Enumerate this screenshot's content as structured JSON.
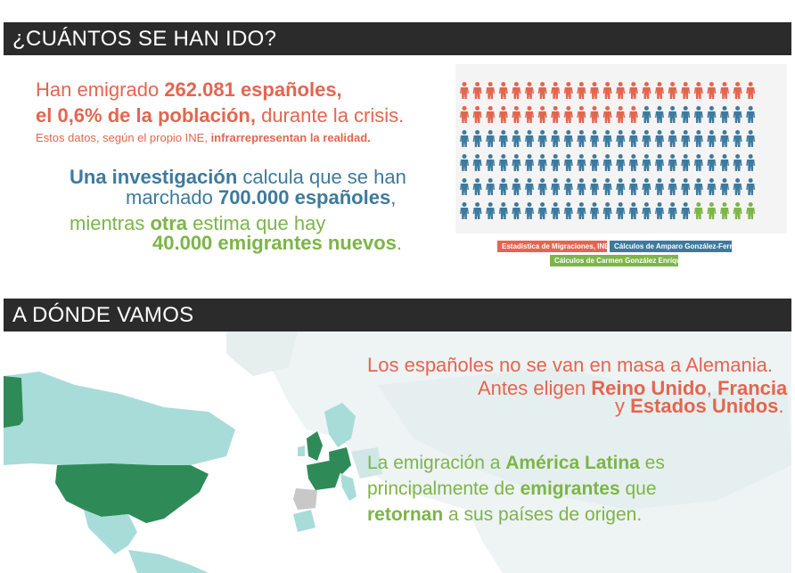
{
  "section1": {
    "header": "¿CUÁNTOS SE HAN IDO?",
    "p1_line1_a": "Han emigrado ",
    "p1_line1_b": "262.081 españoles,",
    "p1_line2_a": "el 0,6% de la población,",
    "p1_line2_b": " durante la crisis.",
    "p1_line3_a": "Estos datos, según el propio INE, ",
    "p1_line3_b": "infrarrepresentan la realidad.",
    "p2_line1_a": "Una investigación",
    "p2_line1_b": " calcula que se han",
    "p2_line2_a": "marchado ",
    "p2_line2_b": "700.000 españoles",
    "p2_line2_c": ",",
    "p3_line1_a": "mientras ",
    "p3_line1_b": "otra",
    "p3_line1_c": "  estima que hay",
    "p3_line2": "40.000 emigrantes nuevos",
    "p3_line2_c": "."
  },
  "chart_data": {
    "type": "table",
    "grid_columns": 23,
    "grid_rows": 6,
    "series": [
      {
        "name": "Estadística de Migraciones, INE",
        "color": "#e4654f",
        "icons": 37
      },
      {
        "name": "Cálculos de Amparo González-Ferrer",
        "color": "#3d7a9e",
        "icons": 96
      },
      {
        "name": "Cálculos de Carmen González Enríquez",
        "color": "#7cb548",
        "icons": 5
      }
    ],
    "legend_placement": "bottom"
  },
  "section2": {
    "header": "A DÓNDE VAMOS",
    "p1_line1": "Los españoles no se van en masa a Alemania.",
    "p1_line2_a": "Antes eligen ",
    "p1_line2_b": "Reino Unido",
    "p1_line2_c": ", ",
    "p1_line2_d": "Francia",
    "p1_line3_a": "y ",
    "p1_line3_b": "Estados Unidos",
    "p1_line3_c": ".",
    "p2_line1_a": "La emigración a ",
    "p2_line1_b": "América Latina",
    "p2_line1_c": " es",
    "p2_line2_a": "principalmente de ",
    "p2_line2_b": "emigrantes",
    "p2_line2_c": " que",
    "p3_line3_a": "retornan",
    "p3_line3_b": " a sus países de origen."
  },
  "map": {
    "highlight_color": "#2e8b57",
    "secondary_color": "#a8dcd8",
    "neutral_color": "#c8c8c8"
  }
}
